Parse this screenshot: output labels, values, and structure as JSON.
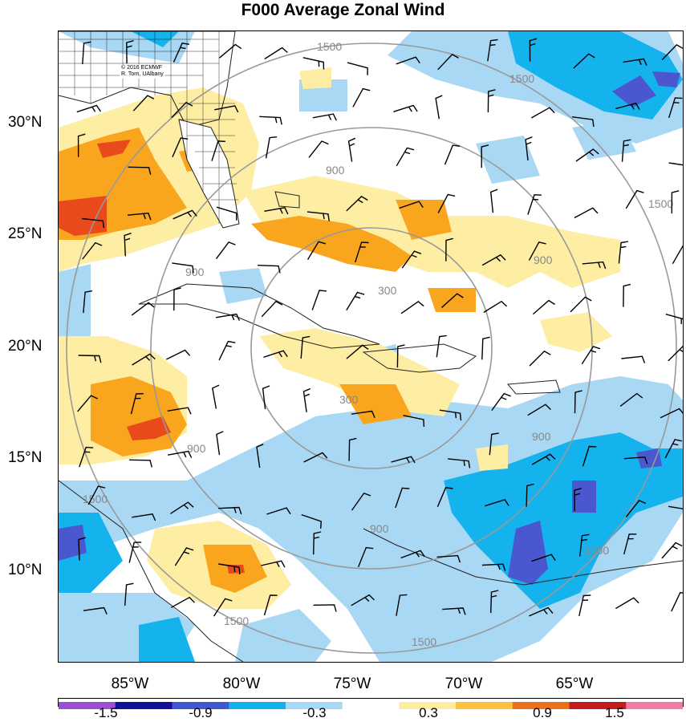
{
  "title": "F000 Average Zonal Wind",
  "credit": {
    "line1": "© 2016 ECMWF",
    "line2": "R. Torn, UAlbany"
  },
  "lat_labels": [
    "30°N",
    "25°N",
    "20°N",
    "15°N",
    "10°N"
  ],
  "lon_labels": [
    "85°W",
    "80°W",
    "75°W",
    "70°W",
    "65°W"
  ],
  "ring_labels": {
    "inner": "300",
    "middle": "900",
    "outer": "1500"
  },
  "colorbar": {
    "colors": [
      "#9b4fd6",
      "#0f0f9a",
      "#3f57d1",
      "#0fb0ee",
      "#a7d8f5",
      "#ffffff",
      "#fdeda0",
      "#fbc33a",
      "#ee7016",
      "#c41c1c",
      "#f47aa6"
    ],
    "ticks": [
      "-1.5",
      "-0.9",
      "-0.3",
      "0.3",
      "0.9",
      "1.5"
    ]
  },
  "palette": {
    "neg_light": "#a8d8f4",
    "neg_mid": "#14b3ee",
    "neg_dark": "#4a57cf",
    "pos_light": "#fdeea4",
    "pos_mid": "#f9a51e",
    "pos_dark": "#e84a1c",
    "ring": "#999999",
    "coast": "#222222"
  }
}
